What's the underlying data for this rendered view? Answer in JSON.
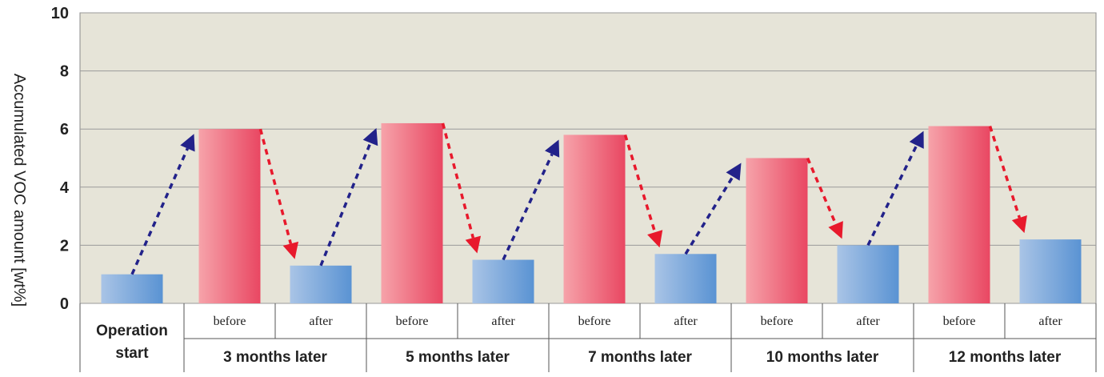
{
  "chart_data": {
    "type": "bar",
    "ylabel": "Accumulated VOC amount [wt%]",
    "ylim": [
      0,
      10
    ],
    "yticks": [
      0,
      2,
      4,
      6,
      8,
      10
    ],
    "grid": true,
    "categories": [
      {
        "group": "Operation start",
        "sub": "",
        "kind": "after"
      },
      {
        "group": "3 months later",
        "sub": "before",
        "kind": "before"
      },
      {
        "group": "3 months later",
        "sub": "after",
        "kind": "after"
      },
      {
        "group": "5 months later",
        "sub": "before",
        "kind": "before"
      },
      {
        "group": "5 months later",
        "sub": "after",
        "kind": "after"
      },
      {
        "group": "7 months later",
        "sub": "before",
        "kind": "before"
      },
      {
        "group": "7 months later",
        "sub": "after",
        "kind": "after"
      },
      {
        "group": "10 months later",
        "sub": "before",
        "kind": "before"
      },
      {
        "group": "10 months later",
        "sub": "after",
        "kind": "after"
      },
      {
        "group": "12 months later",
        "sub": "before",
        "kind": "before"
      },
      {
        "group": "12 months later",
        "sub": "after",
        "kind": "after"
      }
    ],
    "values": [
      1.0,
      6.0,
      1.3,
      6.2,
      1.5,
      5.8,
      1.7,
      5.0,
      2.0,
      6.1,
      2.2
    ],
    "groups": [
      {
        "label": "Operation start",
        "span": 1
      },
      {
        "label": "3 months later",
        "span": 2
      },
      {
        "label": "5 months later",
        "span": 2
      },
      {
        "label": "7 months later",
        "span": 2
      },
      {
        "label": "10 months later",
        "span": 2
      },
      {
        "label": "12 months later",
        "span": 2
      }
    ],
    "colors": {
      "plot_bg": "#e6e4d8",
      "grid": "#9a9a9a",
      "before_light": "#f6a3aa",
      "before_dark": "#e94762",
      "after_light": "#a9c4e6",
      "after_dark": "#5a93d3",
      "arrow_up": "#22228a",
      "arrow_down": "#e8192c"
    }
  }
}
